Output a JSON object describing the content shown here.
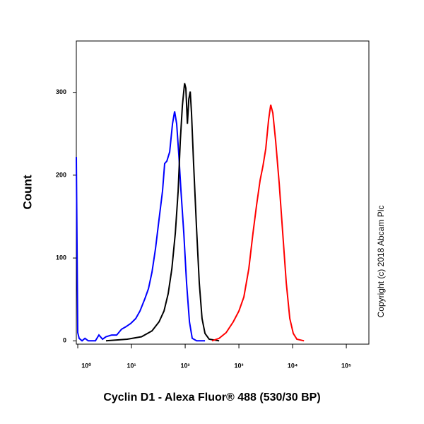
{
  "chart_data": {
    "type": "line",
    "xlabel": "Cyclin D1 - Alexa Fluor® 488 (530/30 BP)",
    "ylabel": "Count",
    "annotation": "Copyright (c) 2018 Abcam Plc",
    "xscale": "log",
    "xlim": [
      0.94,
      263000
    ],
    "ylim": [
      -4,
      362
    ],
    "xticks": [
      {
        "value": 1,
        "label": "10⁰"
      },
      {
        "value": 10,
        "label": "10¹"
      },
      {
        "value": 100,
        "label": "10²"
      },
      {
        "value": 1000,
        "label": "10³"
      },
      {
        "value": 10000,
        "label": "10⁴"
      },
      {
        "value": 100000,
        "label": "10⁵"
      }
    ],
    "yticks": [
      0,
      100,
      200,
      300
    ],
    "series": [
      {
        "color": "#0000ff",
        "x": [
          0.94,
          1,
          1.06,
          1.2,
          1.36,
          1.57,
          2.13,
          2.48,
          2.89,
          3.36,
          4.28,
          5.3,
          6.54,
          7.85,
          9.7,
          12,
          14.4,
          17.8,
          20.7,
          24.1,
          28,
          32.6,
          37.9,
          41.5,
          45.5,
          51.4,
          58,
          63.5,
          69.5,
          76.2,
          83.4,
          94.2,
          106,
          120,
          135,
          163,
          234
        ],
        "values": [
          222,
          10,
          3,
          0,
          3,
          0,
          0,
          7,
          2,
          5,
          7,
          7,
          14,
          17,
          21,
          27,
          36,
          51,
          63,
          83,
          111,
          147,
          181,
          214,
          217,
          228,
          262,
          277,
          262,
          224,
          181,
          130,
          70,
          23,
          3,
          0,
          0
        ]
      },
      {
        "color": "#000000",
        "x": [
          3.36,
          8.34,
          15.4,
          24.1,
          32.6,
          40.3,
          48.3,
          56.4,
          65.5,
          73.9,
          81,
          88.8,
          97.3,
          103,
          110,
          117,
          124,
          131,
          143,
          162,
          183,
          206,
          234,
          280,
          428
        ],
        "values": [
          0,
          2,
          5,
          12,
          23,
          36,
          57,
          87,
          130,
          181,
          241,
          284,
          311,
          305,
          262,
          292,
          301,
          275,
          215,
          138,
          70,
          27,
          9,
          2,
          0
        ]
      },
      {
        "color": "#ff0000",
        "x": [
          316,
          428,
          580,
          785,
          1000,
          1236,
          1528,
          1832,
          2133,
          2482,
          2800,
          3162,
          3570,
          3910,
          4285,
          4830,
          5620,
          6540,
          7620,
          8860,
          10300,
          12000,
          16300
        ],
        "values": [
          0,
          3,
          10,
          23,
          36,
          53,
          87,
          130,
          164,
          194,
          211,
          232,
          267,
          285,
          275,
          241,
          190,
          130,
          70,
          27,
          9,
          2,
          0
        ]
      }
    ]
  }
}
